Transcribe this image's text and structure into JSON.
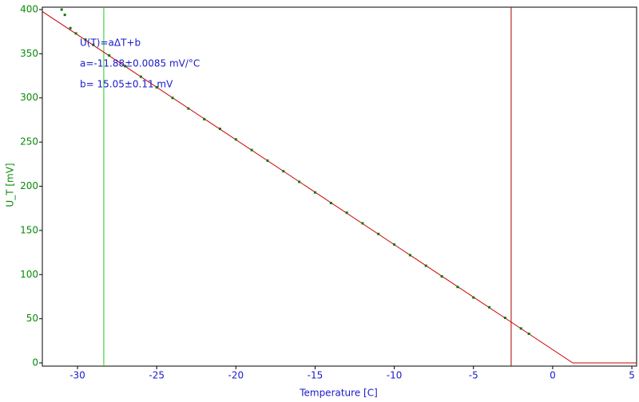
{
  "chart_data": {
    "type": "scatter",
    "x_label": "Temperature [C]",
    "y_label": "U_T [mV]",
    "xlim": [
      -32.22,
      5.3
    ],
    "ylim": [
      -3.6,
      402.7
    ],
    "xticks": [
      -30,
      -25,
      -20,
      -15,
      -10,
      -5,
      0,
      5
    ],
    "yticks": [
      0,
      50,
      100,
      150,
      200,
      250,
      300,
      350,
      400
    ],
    "annotations": [
      "U(T)=aΔT+b",
      "a=-11.88±0.0085 mV/°C",
      "b= 15.05±0.11 mV"
    ],
    "series": [
      {
        "color": "#0a7a0a",
        "x": [
          -31,
          -30.8,
          -30.45,
          -30.1,
          -29.5,
          -29,
          -28,
          -27,
          -26,
          -25,
          -24,
          -23,
          -22,
          -21,
          -20,
          -19,
          -18,
          -17,
          -16,
          -15,
          -14,
          -13,
          -12,
          -11,
          -10,
          -9,
          -8,
          -7,
          -6,
          -5,
          -4,
          -3,
          -2,
          -1.5
        ],
        "values": [
          400,
          394,
          379,
          373,
          366,
          360,
          348,
          336,
          324,
          312,
          300,
          288,
          276,
          265,
          253,
          241,
          229,
          217,
          205,
          193,
          181,
          170,
          158,
          146,
          134,
          122,
          110,
          98,
          86,
          74,
          63,
          51,
          39,
          33
        ]
      },
      {
        "color": "#cc0000",
        "x": [
          -32.2,
          1.27,
          5.3
        ],
        "values": [
          397.6,
          0,
          0
        ]
      }
    ],
    "cursors": [
      {
        "x": -28.34,
        "color": "#22cc22"
      },
      {
        "x": -2.62,
        "color": "#aa0000"
      }
    ]
  }
}
